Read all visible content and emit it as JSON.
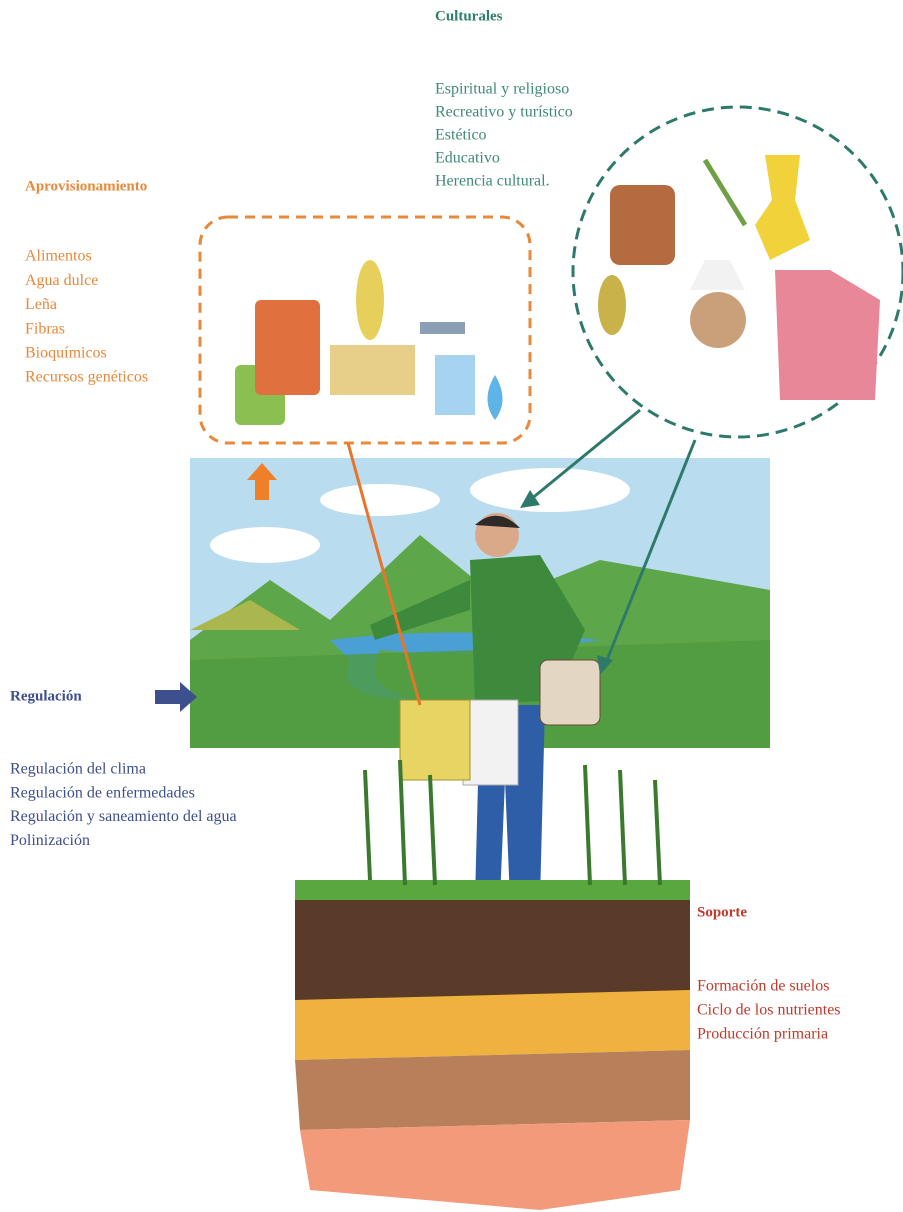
{
  "culturales": {
    "title": "Culturales",
    "items": [
      "Espiritual y religioso",
      "Recreativo y turístico",
      "Estético",
      "Educativo",
      "Herencia cultural."
    ]
  },
  "aprovisionamiento": {
    "title": "Aprovisionamiento",
    "items": [
      "Alimentos",
      "Agua dulce",
      "Leña",
      "Fibras",
      "Bioquímicos",
      "Recursos genéticos"
    ]
  },
  "regulacion": {
    "title": "Regulación",
    "items": [
      "Regulación del clima",
      "Regulación de enfermedades",
      "Regulación y saneamiento del agua",
      "Polinización"
    ]
  },
  "soporte": {
    "title": "Soporte",
    "items": [
      "Formación de suelos",
      "Ciclo de los nutrientes",
      "Producción primaria"
    ]
  }
}
